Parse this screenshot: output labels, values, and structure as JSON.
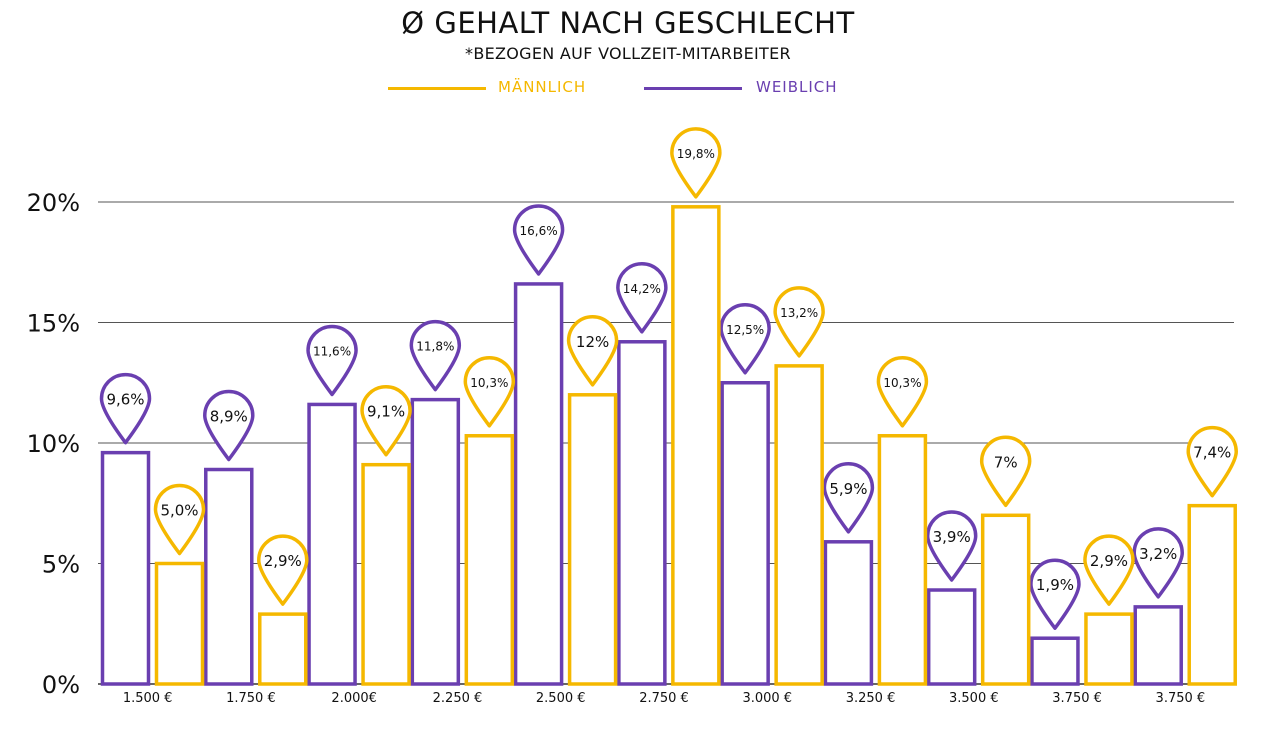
{
  "chart_data": {
    "type": "bar",
    "title": "Ø GEHALT NACH GESCHLECHT",
    "subtitle": "*BEZOGEN AUF VOLLZEIT-MITARBEITER",
    "xlabel": "",
    "ylabel": "",
    "ylim": [
      0,
      20
    ],
    "yticks": [
      0,
      5,
      10,
      15,
      20
    ],
    "ytick_labels": [
      "0%",
      "5%",
      "10%",
      "15%",
      "20%"
    ],
    "grid": true,
    "legend_position": "top-center",
    "categories": [
      "1.500 €",
      "1.750 €",
      "2.000€",
      "2.250 €",
      "2.500 €",
      "2.750 €",
      "3.000 €",
      "3.250 €",
      "3.500 €",
      "3.750 €",
      "3.750 €"
    ],
    "series": [
      {
        "name": "WEIBLICH",
        "color": "#6a3fb0",
        "values": [
          9.6,
          8.9,
          11.6,
          11.8,
          16.6,
          14.2,
          12.5,
          5.9,
          3.9,
          1.9,
          3.2
        ],
        "labels": [
          "9,6%",
          "8,9%",
          "11,6%",
          "11,8%",
          "16,6%",
          "14,2%",
          "12,5%",
          "5,9%",
          "3,9%",
          "1,9%",
          "3,2%"
        ]
      },
      {
        "name": "MÄNNLICH",
        "color": "#f5b800",
        "values": [
          5.0,
          2.9,
          9.1,
          10.3,
          12.0,
          19.8,
          13.2,
          10.3,
          7.0,
          2.9,
          7.4
        ],
        "labels": [
          "5,0%",
          "2,9%",
          "9,1%",
          "10,3%",
          "12%",
          "19,8%",
          "13,2%",
          "10,3%",
          "7%",
          "2,9%",
          "7,4%"
        ]
      }
    ]
  }
}
